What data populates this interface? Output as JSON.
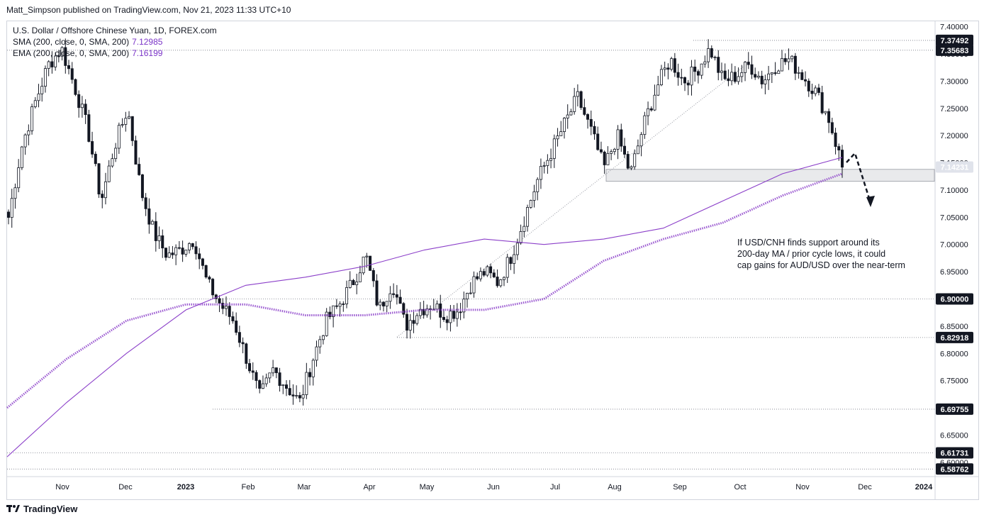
{
  "publisher": "Matt_Simpson published on TradingView.com, Nov 21, 2023 11:33 UTC+10",
  "legend": {
    "symbol": "U.S. Dollar / Offshore Chinese Yuan, 1D, FOREX.com",
    "sma_label": "SMA (200, close, 0, SMA, 200)",
    "sma_value": "7.12985",
    "ema_label": "EMA (200, close, 0, SMA, 200)",
    "ema_value": "7.16199"
  },
  "footer": {
    "brand": "TradingView"
  },
  "colors": {
    "up": "#ffffff",
    "down": "#131722",
    "ma": "#8b3fc9",
    "badge_dark": "#131722",
    "badge_gray": "#9598a1",
    "grid_dot": "#787b86"
  },
  "chart_data": {
    "type": "candlestick",
    "instrument": "USD/CNH",
    "timeframe": "1D",
    "ylim": [
      6.575,
      7.41
    ],
    "y_ticks": [
      "7.40000",
      "7.35000",
      "7.30000",
      "7.25000",
      "7.20000",
      "7.15000",
      "7.10000",
      "7.05000",
      "7.00000",
      "6.95000",
      "6.90000",
      "6.85000",
      "6.80000",
      "6.75000",
      "6.70000",
      "6.65000",
      "6.60000"
    ],
    "x_ticks": [
      "Nov",
      "Dec",
      "2023",
      "Feb",
      "Mar",
      "Apr",
      "May",
      "Jun",
      "Jul",
      "Aug",
      "Sep",
      "Oct",
      "Nov",
      "Dec",
      "2024"
    ],
    "levels": [
      {
        "label": "7.37492",
        "value": 7.37492,
        "badge": "dark"
      },
      {
        "label": "7.35683",
        "value": 7.35683,
        "badge": "dark"
      },
      {
        "label": "7.14231",
        "value": 7.14231,
        "badge": "gray"
      },
      {
        "label": "6.90000",
        "value": 6.9,
        "badge": "dark"
      },
      {
        "label": "6.82918",
        "value": 6.82918,
        "badge": "dark"
      },
      {
        "label": "6.69755",
        "value": 6.69755,
        "badge": "dark"
      },
      {
        "label": "6.61731",
        "value": 6.61731,
        "badge": "dark"
      },
      {
        "label": "6.58762",
        "value": 6.58762,
        "badge": "dark"
      }
    ],
    "support_zone": [
      7.116,
      7.138
    ],
    "price_path": [
      7.05,
      7.18,
      7.26,
      7.33,
      7.36,
      7.29,
      7.21,
      7.08,
      7.18,
      7.25,
      7.1,
      7.02,
      6.98,
      6.99,
      7.01,
      6.93,
      6.89,
      6.86,
      6.79,
      6.72,
      6.77,
      6.74,
      6.71,
      6.79,
      6.86,
      6.89,
      6.93,
      6.98,
      6.88,
      6.93,
      6.85,
      6.88,
      6.89,
      6.87,
      6.88,
      6.93,
      6.95,
      6.93,
      6.98,
      7.05,
      7.12,
      7.17,
      7.22,
      7.27,
      7.21,
      7.14,
      7.2,
      7.13,
      7.22,
      7.29,
      7.34,
      7.3,
      7.32,
      7.36,
      7.3,
      7.31,
      7.33,
      7.3,
      7.33,
      7.34,
      7.31,
      7.28,
      7.23,
      7.145
    ],
    "sma_200": [
      6.7,
      6.79,
      6.86,
      6.89,
      6.89,
      6.87,
      6.87,
      6.88,
      6.88,
      6.9,
      6.97,
      7.01,
      7.04,
      7.09,
      7.13
    ],
    "ema_200": [
      6.61,
      6.71,
      6.8,
      6.88,
      6.925,
      6.94,
      6.96,
      6.99,
      7.01,
      7.0,
      7.01,
      7.03,
      7.08,
      7.13,
      7.16
    ],
    "annotation": "If USD/CNH finds support around its 200-day MA / prior cycle lows, it could cap gains for AUD/USD over the near-term"
  }
}
